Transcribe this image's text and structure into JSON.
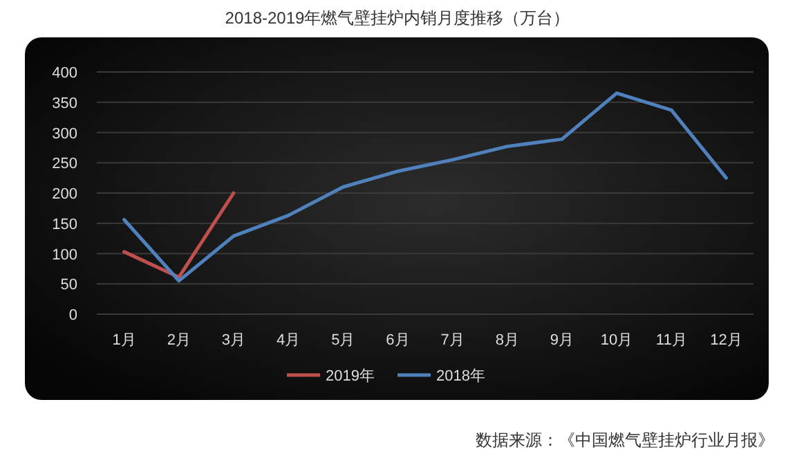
{
  "chart_data": {
    "type": "line",
    "title": "2018-2019年燃气壁挂炉内销月度推移（万台）",
    "categories": [
      "1月",
      "2月",
      "3月",
      "4月",
      "5月",
      "6月",
      "7月",
      "8月",
      "9月",
      "10月",
      "11月",
      "12月"
    ],
    "series": [
      {
        "name": "2019年",
        "color": "#c0504d",
        "values": [
          103,
          61,
          200,
          null,
          null,
          null,
          null,
          null,
          null,
          null,
          null,
          null
        ]
      },
      {
        "name": "2018年",
        "color": "#4f81bd",
        "values": [
          156,
          55,
          129,
          163,
          210,
          236,
          255,
          277,
          289,
          365,
          337,
          225
        ]
      }
    ],
    "ylim": [
      0,
      400
    ],
    "yticks": [
      0,
      50,
      100,
      150,
      200,
      250,
      300,
      350,
      400
    ],
    "grid": "y",
    "legend": "bottom",
    "marker": "none",
    "line_style": "solid",
    "annotations": [
      "数据来源：《中国燃气壁挂炉行业月报》"
    ]
  }
}
